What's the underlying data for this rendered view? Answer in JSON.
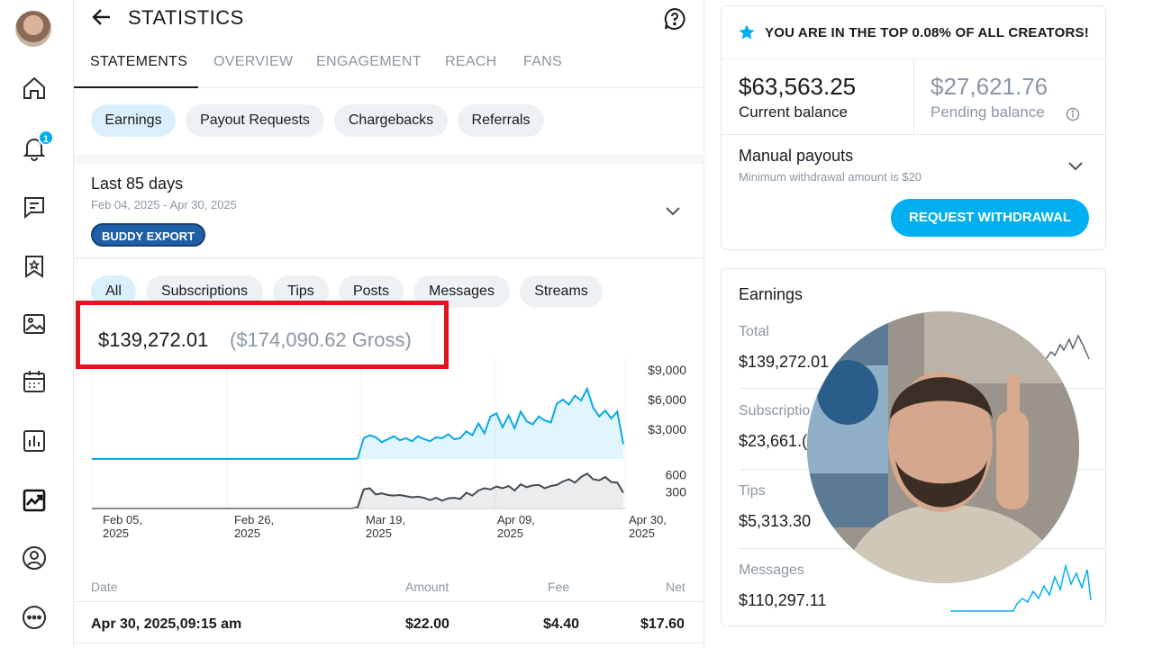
{
  "header": {
    "title": "STATISTICS"
  },
  "tabs": [
    {
      "label": "STATEMENTS",
      "active": true
    },
    {
      "label": "OVERVIEW"
    },
    {
      "label": "ENGAGEMENT"
    },
    {
      "label": "REACH"
    },
    {
      "label": "FANS"
    }
  ],
  "statement_types": [
    "Earnings",
    "Payout Requests",
    "Chargebacks",
    "Referrals"
  ],
  "date_range": {
    "title": "Last 85 days",
    "dates": "Feb 04, 2025 - Apr 30, 2025",
    "badge": "BUDDY EXPORT"
  },
  "filters": [
    "All",
    "Subscriptions",
    "Tips",
    "Posts",
    "Messages",
    "Streams"
  ],
  "totals": {
    "net": "$139,272.01",
    "gross": "($174,090.62 Gross)"
  },
  "chart_data": {
    "type": "line",
    "x_ticks": [
      "Feb 05, 2025",
      "Feb 26, 2025",
      "Mar 19, 2025",
      "Apr 09, 2025",
      "Apr 30, 2025"
    ],
    "top_panel": {
      "y_ticks": [
        "$9,000",
        "$6,000",
        "$3,000"
      ],
      "ylim": [
        0,
        10000
      ],
      "values": [
        0,
        0,
        0,
        0,
        0,
        0,
        0,
        0,
        0,
        0,
        0,
        0,
        0,
        0,
        0,
        0,
        0,
        0,
        0,
        0,
        0,
        0,
        0,
        0,
        0,
        0,
        0,
        0,
        0,
        0,
        0,
        0,
        0,
        0,
        0,
        0,
        0,
        0,
        0,
        0,
        0,
        0,
        0,
        0,
        50,
        2100,
        2400,
        2200,
        1700,
        2000,
        2300,
        1900,
        2100,
        1800,
        2300,
        2000,
        1800,
        2200,
        2100,
        2500,
        2000,
        2100,
        2800,
        2400,
        3600,
        2600,
        4300,
        4600,
        3200,
        4400,
        3100,
        4800,
        3800,
        3500,
        4300,
        3900,
        3700,
        5600,
        6000,
        5500,
        6400,
        5900,
        7100,
        5200,
        4300,
        4900,
        4100,
        4800,
        1500
      ]
    },
    "bottom_panel": {
      "y_ticks": [
        "600",
        "300"
      ],
      "ylim": [
        0,
        800
      ],
      "values": [
        0,
        0,
        0,
        0,
        0,
        0,
        0,
        0,
        0,
        0,
        0,
        0,
        0,
        0,
        0,
        0,
        0,
        0,
        0,
        0,
        0,
        0,
        0,
        0,
        0,
        0,
        0,
        0,
        0,
        0,
        0,
        0,
        0,
        0,
        0,
        0,
        0,
        0,
        0,
        0,
        0,
        0,
        0,
        0,
        20,
        340,
        360,
        250,
        270,
        240,
        230,
        240,
        220,
        200,
        210,
        190,
        150,
        190,
        140,
        180,
        190,
        170,
        280,
        230,
        320,
        360,
        340,
        390,
        360,
        400,
        320,
        430,
        380,
        410,
        420,
        360,
        400,
        420,
        480,
        520,
        460,
        560,
        620,
        520,
        500,
        560,
        470,
        460,
        280
      ]
    }
  },
  "table": {
    "headers": [
      "Date",
      "Amount",
      "Fee",
      "Net"
    ],
    "rows": [
      {
        "date": "Apr 30, 2025,09:15 am",
        "amount": "$22.00",
        "fee": "$4.40",
        "net": "$17.60"
      }
    ]
  },
  "right": {
    "top_banner": "YOU ARE IN THE TOP 0.08% OF ALL CREATORS!",
    "current_balance": {
      "amount": "$63,563.25",
      "label": "Current balance"
    },
    "pending_balance": {
      "amount": "$27,621.76",
      "label": "Pending balance"
    },
    "payouts": {
      "title": "Manual payouts",
      "subtitle": "Minimum withdrawal amount is $20",
      "button": "REQUEST WITHDRAWAL"
    },
    "earnings": {
      "title": "Earnings",
      "rows": [
        {
          "label": "Total",
          "value": "$139,272.01"
        },
        {
          "label": "Subscriptio",
          "value": "$23,661.("
        },
        {
          "label": "Tips",
          "value": "$5,313.30"
        },
        {
          "label": "Messages",
          "value": "$110,297.11"
        }
      ]
    }
  },
  "rail": {
    "notifications_count": "1"
  },
  "colors": {
    "accent": "#00aff0",
    "highlight": "#e0141e",
    "badge": "#1f5fa8"
  }
}
